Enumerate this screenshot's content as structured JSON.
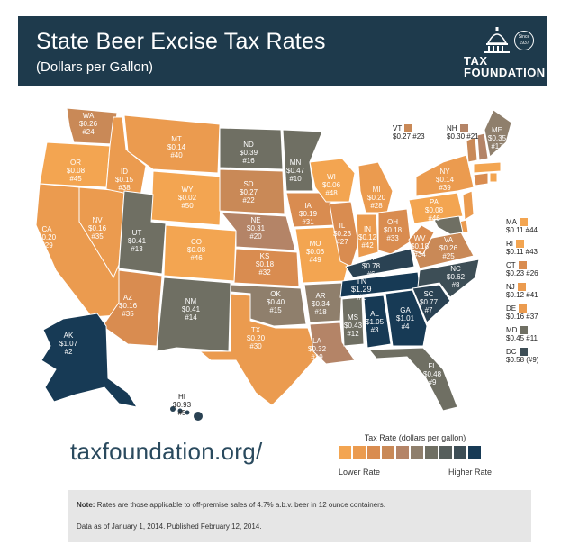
{
  "header": {
    "title": "State Beer Excise Tax Rates",
    "subtitle": "(Dollars per Gallon)",
    "logo_line1": "TAX",
    "logo_line2": "FOUNDATION",
    "logo_since": "Since 1937"
  },
  "colors": {
    "header_bg": "#1e3a4c",
    "scale": [
      "#f3a551",
      "#eb9b4f",
      "#d98c50",
      "#c98957",
      "#b48467",
      "#8f7f6c",
      "#6f6f63",
      "#565e5c",
      "#3d4e56",
      "#2a4253",
      "#173a55"
    ]
  },
  "states": {
    "WA": {
      "name": "WA",
      "rate": "$0.26",
      "rank": "#24"
    },
    "OR": {
      "name": "OR",
      "rate": "$0.08",
      "rank": "#45"
    },
    "CA": {
      "name": "CA",
      "rate": "$0.20",
      "rank": "#29"
    },
    "NV": {
      "name": "NV",
      "rate": "$0.16",
      "rank": "#35"
    },
    "ID": {
      "name": "ID",
      "rate": "$0.15",
      "rank": "#38"
    },
    "MT": {
      "name": "MT",
      "rate": "$0.14",
      "rank": "#40"
    },
    "WY": {
      "name": "WY",
      "rate": "$0.02",
      "rank": "#50"
    },
    "UT": {
      "name": "UT",
      "rate": "$0.41",
      "rank": "#13"
    },
    "AZ": {
      "name": "AZ",
      "rate": "$0.16",
      "rank": "#35"
    },
    "CO": {
      "name": "CO",
      "rate": "$0.08",
      "rank": "#46"
    },
    "NM": {
      "name": "NM",
      "rate": "$0.41",
      "rank": "#14"
    },
    "ND": {
      "name": "ND",
      "rate": "$0.39",
      "rank": "#16"
    },
    "SD": {
      "name": "SD",
      "rate": "$0.27",
      "rank": "#22"
    },
    "NE": {
      "name": "NE",
      "rate": "$0.31",
      "rank": "#20"
    },
    "KS": {
      "name": "KS",
      "rate": "$0.18",
      "rank": "#32"
    },
    "OK": {
      "name": "OK",
      "rate": "$0.40",
      "rank": "#15"
    },
    "TX": {
      "name": "TX",
      "rate": "$0.20",
      "rank": "#30"
    },
    "MN": {
      "name": "MN",
      "rate": "$0.47",
      "rank": "#10"
    },
    "IA": {
      "name": "IA",
      "rate": "$0.19",
      "rank": "#31"
    },
    "MO": {
      "name": "MO",
      "rate": "$0.06",
      "rank": "#49"
    },
    "AR": {
      "name": "AR",
      "rate": "$0.34",
      "rank": "#18"
    },
    "LA": {
      "name": "LA",
      "rate": "$0.32",
      "rank": "#19"
    },
    "WI": {
      "name": "WI",
      "rate": "$0.06",
      "rank": "#48"
    },
    "IL": {
      "name": "IL",
      "rate": "$0.23",
      "rank": "#27"
    },
    "MI": {
      "name": "MI",
      "rate": "$0.20",
      "rank": "#28"
    },
    "IN": {
      "name": "IN",
      "rate": "$0.12",
      "rank": "#42"
    },
    "OH": {
      "name": "OH",
      "rate": "$0.18",
      "rank": "#33"
    },
    "KY": {
      "name": "KY",
      "rate": "$0.78",
      "rank": "#6"
    },
    "TN": {
      "name": "TN",
      "rate": "$1.29",
      "rank": "#1"
    },
    "MS": {
      "name": "MS",
      "rate": "$0.43",
      "rank": "#12"
    },
    "AL": {
      "name": "AL",
      "rate": "$1.05",
      "rank": "#3"
    },
    "GA": {
      "name": "GA",
      "rate": "$1.01",
      "rank": "#4"
    },
    "FL": {
      "name": "FL",
      "rate": "$0.48",
      "rank": "#9"
    },
    "SC": {
      "name": "SC",
      "rate": "$0.77",
      "rank": "#7"
    },
    "NC": {
      "name": "NC",
      "rate": "$0.62",
      "rank": "#8"
    },
    "VA": {
      "name": "VA",
      "rate": "$0.26",
      "rank": "#25"
    },
    "WV": {
      "name": "WV",
      "rate": "$0.18",
      "rank": "#34"
    },
    "PA": {
      "name": "PA",
      "rate": "$0.08",
      "rank": "#46"
    },
    "NY": {
      "name": "NY",
      "rate": "$0.14",
      "rank": "#39"
    },
    "ME": {
      "name": "ME",
      "rate": "$0.35",
      "rank": "#17"
    },
    "AK": {
      "name": "AK",
      "rate": "$1.07",
      "rank": "#2"
    },
    "HI": {
      "name": "HI",
      "rate": "$0.93",
      "rank": "#5"
    }
  },
  "top_right": {
    "VT": {
      "name": "VT",
      "value": "$0.27 #23"
    },
    "NH": {
      "name": "NH",
      "value": "$0.30 #21"
    }
  },
  "side_list": [
    {
      "name": "MA",
      "value": "$0.11 #44"
    },
    {
      "name": "RI",
      "value": "$0.11 #43"
    },
    {
      "name": "CT",
      "value": "$0.23 #26"
    },
    {
      "name": "NJ",
      "value": "$0.12 #41"
    },
    {
      "name": "DE",
      "value": "$0.16 #37"
    },
    {
      "name": "MD",
      "value": "$0.45 #11"
    },
    {
      "name": "DC",
      "value": "$0.58 (#9)"
    }
  ],
  "url": "taxfoundation.org/",
  "legend": {
    "title": "Tax Rate (dollars per gallon)",
    "low": "Lower Rate",
    "high": "Higher Rate"
  },
  "note": {
    "label": "Note:",
    "text": "Rates are those applicable to off-premise sales of 4.7% a.b.v. beer in 12 ounce containers.",
    "data_line": "Data as of January 1, 2014. Published February 12, 2014."
  }
}
